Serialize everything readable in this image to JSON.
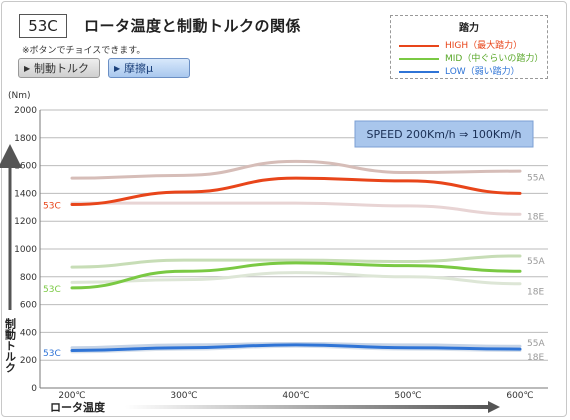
{
  "header": {
    "code": "53C",
    "title": "ロータ温度と制動トルクの関係",
    "note": "※ボタンでチョイスできます。"
  },
  "buttons": {
    "torque": "制動トルク",
    "friction": "摩擦μ",
    "arrow": "▶"
  },
  "legend": {
    "title": "踏力",
    "items": [
      {
        "label": "HIGH（最大踏力）",
        "color": "#e8451a"
      },
      {
        "label": "MID（中ぐらいの踏力）",
        "color": "#7ac943"
      },
      {
        "label": "LOW（弱い踏力）",
        "color": "#2f74d6"
      }
    ]
  },
  "speed_box": "SPEED 200Km/h ⇒ 100Km/h",
  "chart_data": {
    "type": "line",
    "ylabel": "制動トルク",
    "yunit": "(Nm)",
    "xlabel": "ロータ温度",
    "x_ticks": [
      "200℃",
      "300℃",
      "400℃",
      "500℃",
      "600℃"
    ],
    "x": [
      200,
      300,
      400,
      500,
      600
    ],
    "xlim": [
      200,
      600
    ],
    "ylim": [
      0,
      2000
    ],
    "y_ticks": [
      0,
      200,
      400,
      600,
      800,
      1000,
      1200,
      1400,
      1600,
      1800,
      2000
    ],
    "grid": true,
    "series": [
      {
        "name": "53C",
        "group": "HIGH",
        "color": "#e8451a",
        "width": 3,
        "values": [
          1320,
          1410,
          1510,
          1490,
          1400
        ]
      },
      {
        "name": "55A",
        "group": "HIGH",
        "color": "#d6bdb8",
        "width": 3,
        "values": [
          1510,
          1530,
          1630,
          1550,
          1560
        ]
      },
      {
        "name": "18E",
        "group": "HIGH",
        "color": "#e8d4d4",
        "width": 3,
        "values": [
          1330,
          1330,
          1330,
          1310,
          1250
        ]
      },
      {
        "name": "53C",
        "group": "MID",
        "color": "#7ac943",
        "width": 3,
        "values": [
          720,
          840,
          900,
          880,
          840
        ]
      },
      {
        "name": "55A",
        "group": "MID",
        "color": "#c7ddb6",
        "width": 3,
        "values": [
          870,
          920,
          920,
          910,
          950
        ]
      },
      {
        "name": "18E",
        "group": "MID",
        "color": "#dde6d6",
        "width": 3,
        "values": [
          760,
          780,
          830,
          800,
          750
        ]
      },
      {
        "name": "53C",
        "group": "LOW",
        "color": "#2f74d6",
        "width": 3,
        "values": [
          270,
          290,
          310,
          290,
          280
        ]
      },
      {
        "name": "55A",
        "group": "LOW",
        "color": "#c5d3e6",
        "width": 3,
        "values": [
          290,
          310,
          320,
          310,
          300
        ]
      },
      {
        "name": "18E",
        "group": "LOW",
        "color": "#d8e1ec",
        "width": 3,
        "values": [
          260,
          280,
          300,
          280,
          270
        ]
      }
    ],
    "series_labels": [
      {
        "text": "55A",
        "side": "right",
        "ref_value": 1520,
        "color": "#999999"
      },
      {
        "text": "18E",
        "side": "right",
        "ref_value": 1240,
        "color": "#999999"
      },
      {
        "text": "55A",
        "side": "right",
        "ref_value": 920,
        "color": "#999999"
      },
      {
        "text": "18E",
        "side": "right",
        "ref_value": 700,
        "color": "#999999"
      },
      {
        "text": "55A",
        "side": "right",
        "ref_value": 330,
        "color": "#999999"
      },
      {
        "text": "18E",
        "side": "right",
        "ref_value": 230,
        "color": "#999999"
      },
      {
        "text": "53C",
        "side": "left",
        "ref_value": 1320,
        "color": "#e8451a"
      },
      {
        "text": "53C",
        "side": "left",
        "ref_value": 720,
        "color": "#7ac943"
      },
      {
        "text": "53C",
        "side": "left",
        "ref_value": 260,
        "color": "#2f74d6"
      }
    ]
  }
}
